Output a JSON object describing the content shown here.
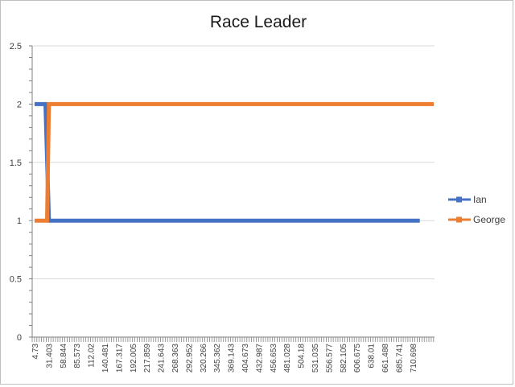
{
  "chart_data": {
    "type": "line",
    "title": "Race Leader",
    "xlabel": "",
    "ylabel": "",
    "ylim": [
      0,
      2.5
    ],
    "yticks": [
      "0",
      "0.5",
      "1",
      "1.5",
      "2",
      "2.5"
    ],
    "grid": true,
    "legend_position": "right",
    "x_tick_labels": [
      "4.73",
      "31.403",
      "58.844",
      "85.573",
      "112.02",
      "140.481",
      "167.317",
      "192.005",
      "217.859",
      "241.643",
      "268.363",
      "292.952",
      "320.266",
      "345.362",
      "369.143",
      "404.673",
      "432.987",
      "456.653",
      "481.028",
      "504.18",
      "531.035",
      "556.577",
      "582.105",
      "606.675",
      "638.01",
      "661.488",
      "685.741",
      "710.698"
    ],
    "series": [
      {
        "name": "Ian",
        "color": "#4472c4",
        "points": [
          [
            4.73,
            2
          ],
          [
            25.0,
            2
          ],
          [
            31.403,
            1
          ],
          [
            724.0,
            1
          ]
        ]
      },
      {
        "name": "George",
        "color": "#ed7d31",
        "points": [
          [
            4.73,
            1
          ],
          [
            28.0,
            1
          ],
          [
            31.403,
            2
          ],
          [
            750.0,
            2
          ]
        ]
      }
    ]
  },
  "colors": {
    "grid": "#d9d9d9",
    "axis": "#808080"
  }
}
